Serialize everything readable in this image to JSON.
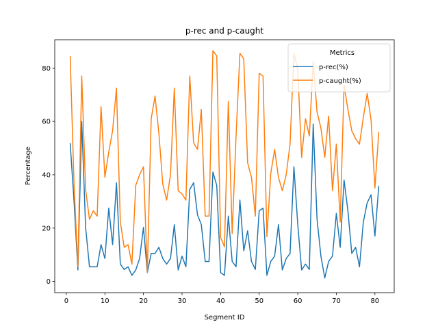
{
  "chart_data": {
    "type": "line",
    "title": "p-rec and p-caught",
    "xlabel": "Segment ID",
    "ylabel": "Percentage",
    "xlim": [
      -3,
      85
    ],
    "ylim": [
      -4.2,
      90.6
    ],
    "xticks": [
      0,
      10,
      20,
      30,
      40,
      50,
      60,
      70,
      80
    ],
    "yticks": [
      0,
      20,
      40,
      60,
      80
    ],
    "legend_title": "Metrics",
    "legend_placement": "upper-right",
    "x": [
      1,
      2,
      3,
      4,
      5,
      6,
      7,
      8,
      9,
      10,
      11,
      12,
      13,
      14,
      15,
      16,
      17,
      18,
      19,
      20,
      21,
      22,
      23,
      24,
      25,
      26,
      27,
      28,
      29,
      30,
      31,
      32,
      33,
      34,
      35,
      36,
      37,
      38,
      39,
      40,
      41,
      42,
      43,
      44,
      45,
      46,
      47,
      48,
      49,
      50,
      51,
      52,
      53,
      54,
      55,
      56,
      57,
      58,
      59,
      60,
      61,
      62,
      63,
      64,
      65,
      66,
      67,
      68,
      69,
      70,
      71,
      72,
      73,
      74,
      75,
      76,
      77,
      78,
      79,
      80,
      81
    ],
    "series": [
      {
        "name": "p-rec(%)",
        "color": "#1f77b4",
        "values": [
          51.8,
          30.0,
          4.3,
          60.0,
          20.3,
          5.5,
          5.5,
          5.5,
          13.8,
          8.6,
          27.5,
          13.8,
          37.0,
          6.5,
          4.5,
          5.5,
          2.3,
          4.3,
          8.6,
          20.3,
          3.3,
          10.5,
          10.5,
          12.8,
          8.6,
          6.5,
          8.6,
          21.3,
          4.3,
          9.5,
          5.5,
          34.5,
          37.0,
          25.0,
          21.3,
          7.5,
          7.5,
          41.0,
          36.0,
          3.3,
          2.3,
          24.5,
          7.5,
          5.5,
          30.5,
          11.5,
          19.0,
          7.5,
          4.5,
          26.5,
          27.5,
          2.3,
          7.5,
          9.5,
          21.3,
          4.3,
          8.6,
          10.5,
          43.0,
          21.3,
          4.3,
          6.5,
          4.5,
          59.0,
          23.3,
          9.5,
          1.3,
          7.5,
          9.5,
          25.5,
          12.8,
          38.0,
          26.5,
          10.5,
          12.8,
          5.5,
          22.3,
          29.5,
          32.5,
          17.0,
          35.8
        ]
      },
      {
        "name": "p-caught(%)",
        "color": "#ff7f0e",
        "values": [
          84.5,
          36.5,
          5.5,
          77.0,
          34.5,
          23.3,
          26.5,
          24.5,
          65.5,
          39.0,
          48.5,
          56.5,
          72.5,
          22.3,
          12.8,
          13.8,
          6.5,
          36.0,
          40.0,
          43.0,
          3.3,
          61.0,
          69.5,
          55.5,
          36.5,
          30.5,
          40.0,
          72.5,
          34.0,
          32.8,
          30.5,
          77.0,
          52.0,
          49.5,
          64.5,
          24.5,
          24.5,
          86.5,
          84.5,
          16.5,
          13.0,
          67.5,
          18.0,
          54.5,
          85.5,
          83.5,
          44.5,
          39.0,
          24.5,
          78.0,
          77.0,
          16.8,
          40.5,
          49.5,
          39.0,
          34.0,
          40.0,
          51.5,
          85.5,
          79.5,
          46.5,
          61.0,
          54.5,
          82.5,
          63.5,
          57.5,
          46.5,
          62.0,
          34.0,
          51.5,
          22.3,
          73.5,
          64.5,
          56.5,
          53.5,
          51.5,
          61.5,
          70.5,
          60.5,
          35.0,
          56.0
        ]
      }
    ]
  }
}
